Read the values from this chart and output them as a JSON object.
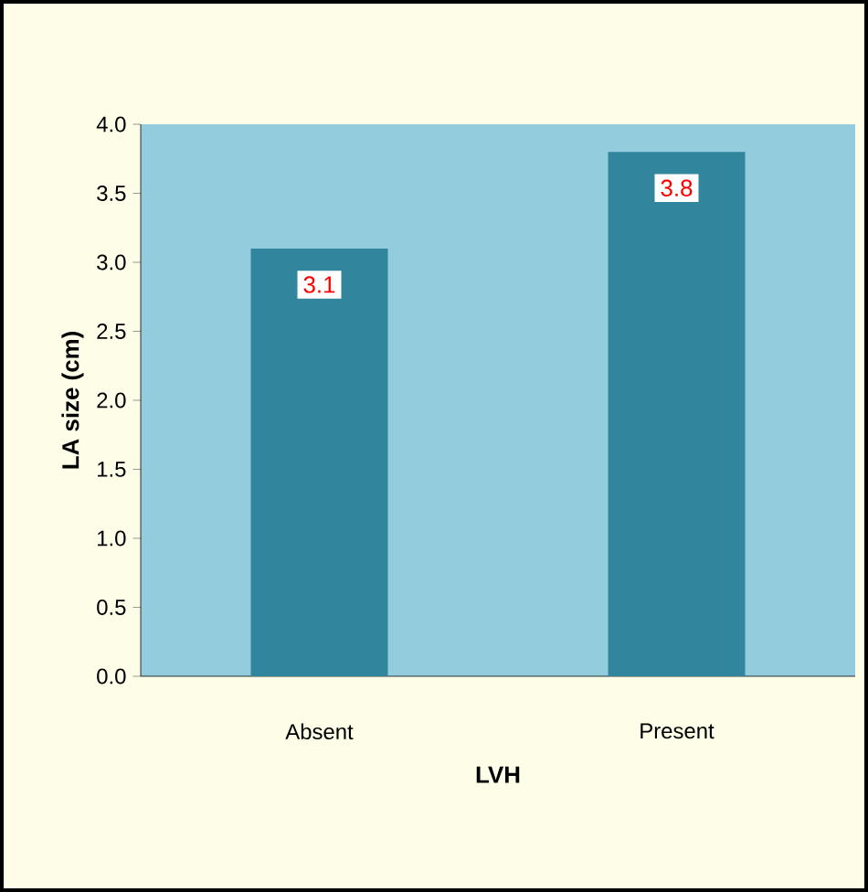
{
  "chart_data": {
    "type": "bar",
    "xlabel": "LVH",
    "ylabel": "LA size (cm)",
    "categories": [
      "Absent",
      "Present"
    ],
    "values": [
      3.1,
      3.8
    ],
    "color": "#31859c",
    "ylim": [
      0,
      4
    ],
    "yticks": [
      {
        "value": 0,
        "label": "0.0"
      },
      {
        "value": 0.5,
        "label": "0.5"
      },
      {
        "value": 1,
        "label": "1.0"
      },
      {
        "value": 1.5,
        "label": "1.5"
      },
      {
        "value": 2,
        "label": "2.0"
      },
      {
        "value": 2.5,
        "label": "2.5"
      },
      {
        "value": 3,
        "label": "3.0"
      },
      {
        "value": 3.5,
        "label": "3.5"
      },
      {
        "value": 4,
        "label": "4.0"
      }
    ],
    "data_labels": true,
    "grid": false
  }
}
